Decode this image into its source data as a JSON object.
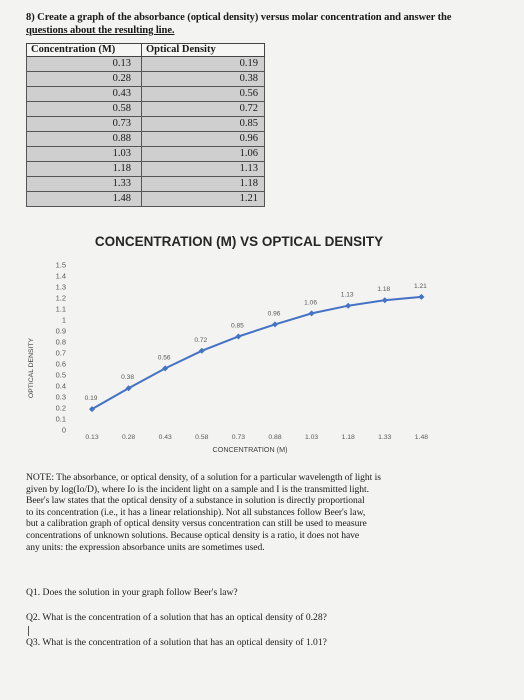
{
  "question": {
    "line1": "8) Create a graph of the absorbance (optical density) versus molar concentration and answer the",
    "line2": "questions about the resulting line."
  },
  "table": {
    "headers": [
      "Concentration (M)",
      "Optical Density"
    ],
    "rows": [
      [
        "0.13",
        "0.19"
      ],
      [
        "0.28",
        "0.38"
      ],
      [
        "0.43",
        "0.56"
      ],
      [
        "0.58",
        "0.72"
      ],
      [
        "0.73",
        "0.85"
      ],
      [
        "0.88",
        "0.96"
      ],
      [
        "1.03",
        "1.06"
      ],
      [
        "1.18",
        "1.13"
      ],
      [
        "1.33",
        "1.18"
      ],
      [
        "1.48",
        "1.21"
      ]
    ]
  },
  "chart_data": {
    "type": "line",
    "title": "CONCENTRATION (M) VS OPTICAL DENSITY",
    "xlabel": "CONCENTRATION (M)",
    "ylabel": "OPTICAL DENSITY",
    "x_ticks": [
      "0.13",
      "0.28",
      "0.43",
      "0.58",
      "0.73",
      "0.88",
      "1.03",
      "1.18",
      "1.33",
      "1.48"
    ],
    "y_ticks": [
      "0",
      "0.1",
      "0.2",
      "0.3",
      "0.4",
      "0.5",
      "0.6",
      "0.7",
      "0.8",
      "0.9",
      "1",
      "1.1",
      "1.2",
      "1.3",
      "1.4",
      "1.5"
    ],
    "ylim": [
      0,
      1.5
    ],
    "series": [
      {
        "x": [
          0.13,
          0.28,
          0.43,
          0.58,
          0.73,
          0.88,
          1.03,
          1.18,
          1.33,
          1.48
        ],
        "values": [
          0.19,
          0.38,
          0.56,
          0.72,
          0.85,
          0.96,
          1.06,
          1.13,
          1.18,
          1.21
        ],
        "labels": [
          "0.19",
          "0.38",
          "0.56",
          "0.72",
          "0.85",
          "0.96",
          "1.06",
          "1.13",
          "1.18",
          "1.21"
        ]
      }
    ],
    "colors": {
      "line": "#4472c4",
      "text": "#595959"
    },
    "grid": false,
    "legend": "none"
  },
  "note": {
    "lines": [
      "NOTE: The absorbance, or optical density, of a solution for a particular wavelength of light is",
      "given by log(Io/D), where Io is the incident light on a sample and I is the transmitted light.",
      "Beer's law states that the optical density of a substance in solution is directly proportional",
      "to its concentration (i.e., it has a linear relationship). Not all substances follow Beer's law,",
      "but a calibration graph of optical density versus concentration can still be used to measure",
      "concentrations of unknown solutions. Because optical density is a ratio, it does not have",
      "any units: the expression absorbance units are sometimes used."
    ]
  },
  "questions": {
    "q1": "Q1. Does the solution in your graph follow Beer's law?",
    "q2": "Q2. What is the concentration of a solution that has an optical density of 0.28?",
    "q3": "Q3. What is the concentration of a solution that has an optical density of 1.01?"
  }
}
